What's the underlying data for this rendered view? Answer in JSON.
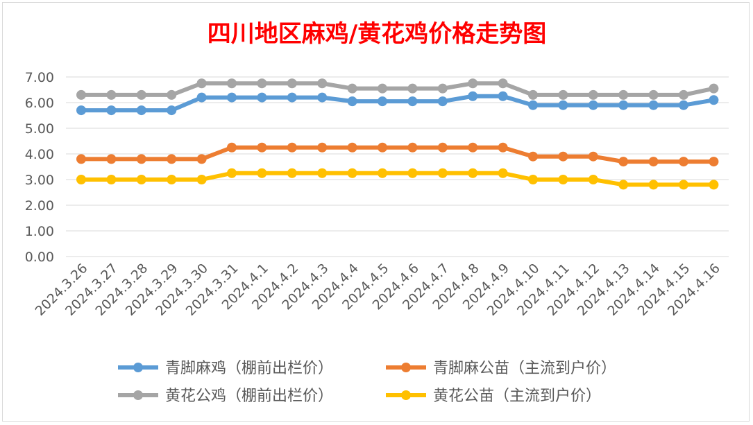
{
  "chart_data": {
    "type": "line",
    "title": "四川地区麻鸡/黄花鸡价格走势图",
    "title_color": "#ff0000",
    "categories": [
      "2024.3.26",
      "2024.3.27",
      "2024.3.28",
      "2024.3.29",
      "2024.3.30",
      "2024.3.31",
      "2024.4.1",
      "2024.4.2",
      "2024.4.3",
      "2024.4.4",
      "2024.4.5",
      "2024.4.6",
      "2024.4.7",
      "2024.4.8",
      "2024.4.9",
      "2024.4.10",
      "2024.4.11",
      "2024.4.12",
      "2024.4.13",
      "2024.4.14",
      "2024.4.15",
      "2024.4.16"
    ],
    "y_ticks": [
      "0.00",
      "1.00",
      "2.00",
      "3.00",
      "4.00",
      "5.00",
      "6.00",
      "7.00"
    ],
    "ylim": [
      0,
      7
    ],
    "grid": true,
    "legend_position": "bottom",
    "series": [
      {
        "name": "青脚麻鸡（棚前出栏价）",
        "color": "#5b9bd5",
        "values": [
          5.7,
          5.7,
          5.7,
          5.7,
          6.2,
          6.2,
          6.2,
          6.2,
          6.2,
          6.05,
          6.05,
          6.05,
          6.05,
          6.25,
          6.25,
          5.9,
          5.9,
          5.9,
          5.9,
          5.9,
          5.9,
          6.1
        ]
      },
      {
        "name": "青脚麻公苗（主流到户价）",
        "color": "#ed7d31",
        "values": [
          3.8,
          3.8,
          3.8,
          3.8,
          3.8,
          4.25,
          4.25,
          4.25,
          4.25,
          4.25,
          4.25,
          4.25,
          4.25,
          4.25,
          4.25,
          3.9,
          3.9,
          3.9,
          3.7,
          3.7,
          3.7,
          3.7
        ]
      },
      {
        "name": "黄花公鸡（棚前出栏价）",
        "color": "#a5a5a5",
        "values": [
          6.3,
          6.3,
          6.3,
          6.3,
          6.75,
          6.75,
          6.75,
          6.75,
          6.75,
          6.55,
          6.55,
          6.55,
          6.55,
          6.75,
          6.75,
          6.3,
          6.3,
          6.3,
          6.3,
          6.3,
          6.3,
          6.55
        ]
      },
      {
        "name": "黄花公苗（主流到户价）",
        "color": "#ffc000",
        "values": [
          3.0,
          3.0,
          3.0,
          3.0,
          3.0,
          3.25,
          3.25,
          3.25,
          3.25,
          3.25,
          3.25,
          3.25,
          3.25,
          3.25,
          3.25,
          3.0,
          3.0,
          3.0,
          2.8,
          2.8,
          2.8,
          2.8
        ]
      }
    ]
  }
}
